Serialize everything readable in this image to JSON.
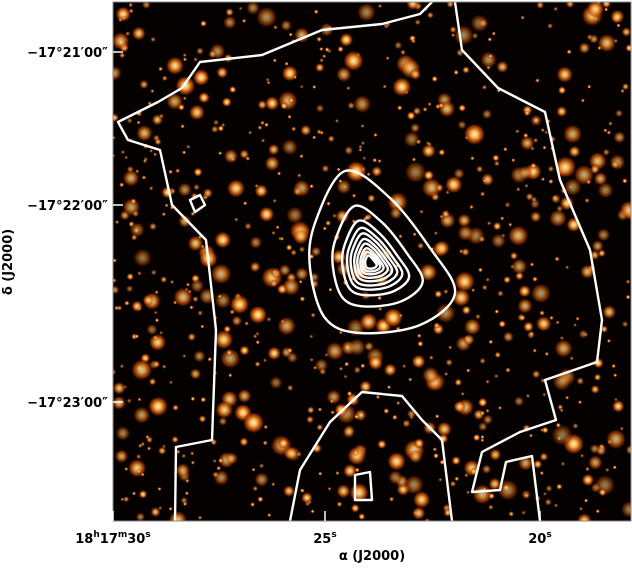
{
  "axes": {
    "x_label": "α (J2000)",
    "y_label": "δ (J2000)",
    "x_ticks": [
      [
        "18",
        "h",
        "17",
        "m",
        "30",
        "s"
      ],
      [
        "25",
        "s"
      ],
      [
        "20",
        "s"
      ]
    ],
    "y_ticks": [
      "−17°21′00″",
      "−17°22′00″",
      "−17°23′00″"
    ]
  }
}
